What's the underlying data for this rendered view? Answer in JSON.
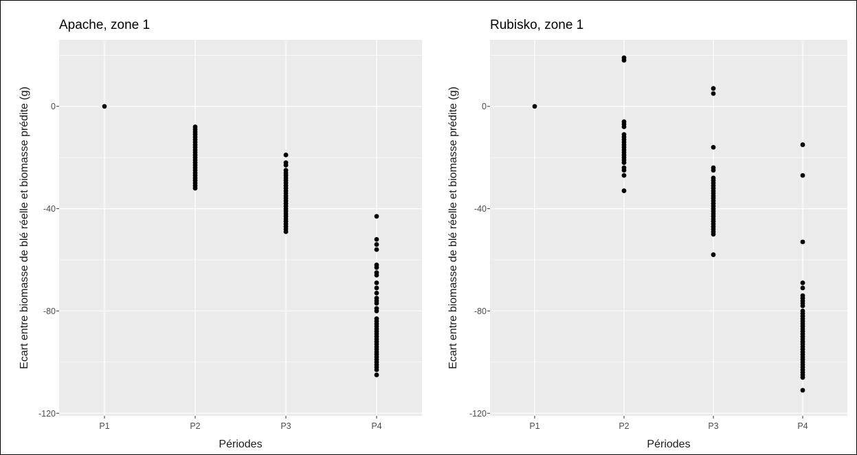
{
  "chart_data": [
    {
      "type": "scatter",
      "title": "Apache, zone 1",
      "xlabel": "Périodes",
      "ylabel": "Ecart entre biomasse de blé réelle et biomasse prédite (g)",
      "categories": [
        "P1",
        "P2",
        "P3",
        "P4"
      ],
      "yticks": [
        0,
        -40,
        -80,
        -120
      ],
      "ylim": [
        -121,
        26
      ],
      "grid": true,
      "points": [
        {
          "x": "P1",
          "y": [
            0
          ]
        },
        {
          "x": "P2",
          "y": [
            -8,
            -9,
            -10,
            -11,
            -12,
            -13,
            -14,
            -15,
            -16,
            -17,
            -18,
            -19,
            -20,
            -21,
            -22,
            -23,
            -24,
            -25,
            -26,
            -27,
            -28,
            -29,
            -30,
            -31,
            -32
          ]
        },
        {
          "x": "P3",
          "y": [
            -19,
            -22,
            -23,
            -25,
            -26,
            -27,
            -28,
            -29,
            -30,
            -31,
            -32,
            -33,
            -34,
            -35,
            -36,
            -37,
            -38,
            -39,
            -40,
            -41,
            -42,
            -43,
            -44,
            -45,
            -46,
            -47,
            -48,
            -49
          ]
        },
        {
          "x": "P4",
          "y": [
            -43,
            -52,
            -54,
            -56,
            -62,
            -63,
            -65,
            -66,
            -69,
            -71,
            -73,
            -75,
            -76,
            -77,
            -79,
            -80,
            -83,
            -84,
            -85,
            -86,
            -87,
            -88,
            -89,
            -90,
            -91,
            -92,
            -93,
            -94,
            -95,
            -96,
            -97,
            -98,
            -99,
            -100,
            -101,
            -102,
            -103,
            -105
          ]
        }
      ]
    },
    {
      "type": "scatter",
      "title": "Rubisko, zone 1",
      "xlabel": "Périodes",
      "ylabel": "Ecart entre biomasse de blé réelle et biomasse prédite (g)",
      "categories": [
        "P1",
        "P2",
        "P3",
        "P4"
      ],
      "yticks": [
        0,
        -40,
        -80,
        -120
      ],
      "ylim": [
        -121,
        26
      ],
      "grid": true,
      "points": [
        {
          "x": "P1",
          "y": [
            0
          ]
        },
        {
          "x": "P2",
          "y": [
            19,
            18,
            -6,
            -7,
            -8,
            -11,
            -12,
            -13,
            -14,
            -15,
            -16,
            -17,
            -18,
            -19,
            -20,
            -21,
            -22,
            -24,
            -25,
            -27,
            -33
          ]
        },
        {
          "x": "P3",
          "y": [
            7,
            5,
            -16,
            -24,
            -25,
            -28,
            -29,
            -30,
            -31,
            -32,
            -33,
            -34,
            -35,
            -36,
            -37,
            -38,
            -39,
            -40,
            -41,
            -42,
            -43,
            -44,
            -45,
            -46,
            -47,
            -48,
            -49,
            -50,
            -58
          ]
        },
        {
          "x": "P4",
          "y": [
            -15,
            -27,
            -53,
            -69,
            -71,
            -74,
            -75,
            -76,
            -77,
            -78,
            -80,
            -81,
            -82,
            -83,
            -84,
            -85,
            -86,
            -87,
            -88,
            -89,
            -90,
            -91,
            -92,
            -93,
            -94,
            -95,
            -96,
            -97,
            -98,
            -99,
            -100,
            -101,
            -102,
            -103,
            -104,
            -105,
            -106,
            -111
          ]
        }
      ]
    }
  ]
}
